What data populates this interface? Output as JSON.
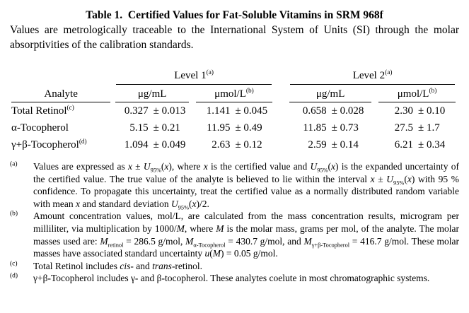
{
  "title": "Table 1.  Certified Values for Fat-Soluble Vitamins in SRM 968f",
  "intro": "Values are metrologically traceable to the International System of Units (SI) through the molar absorptivities of the calibration standards.",
  "table": {
    "analyte_header": "Analyte",
    "level_headers": [
      [
        {
          "t": "Level 1"
        },
        {
          "t": "(a)",
          "s": "sup"
        }
      ],
      [
        {
          "t": "Level 2"
        },
        {
          "t": "(a)",
          "s": "sup"
        }
      ]
    ],
    "unit_headers": [
      [
        {
          "t": "μg/mL"
        }
      ],
      [
        {
          "t": "μmol/L"
        },
        {
          "t": "(b)",
          "s": "sup"
        }
      ],
      [
        {
          "t": "μg/mL"
        }
      ],
      [
        {
          "t": "μmol/L"
        },
        {
          "t": "(b)",
          "s": "sup"
        }
      ]
    ],
    "rows": [
      {
        "analyte": [
          {
            "t": "Total Retinol"
          },
          {
            "t": "(c)",
            "s": "sup"
          }
        ],
        "values": [
          {
            "v": "0.327",
            "u": "± 0.013"
          },
          {
            "v": "1.141",
            "u": "± 0.045"
          },
          {
            "v": "0.658",
            "u": "± 0.028"
          },
          {
            "v": "2.30",
            "u": "± 0.10"
          }
        ]
      },
      {
        "analyte": [
          {
            "t": "α-Tocopherol"
          }
        ],
        "values": [
          {
            "v": "5.15",
            "u": "± 0.21"
          },
          {
            "v": "11.95",
            "u": "± 0.49"
          },
          {
            "v": "11.85",
            "u": "± 0.73"
          },
          {
            "v": "27.5",
            "u": "± 1.7"
          }
        ]
      },
      {
        "analyte": [
          {
            "t": "γ+β-Tocopherol"
          },
          {
            "t": "(d)",
            "s": "sup"
          }
        ],
        "values": [
          {
            "v": "1.094",
            "u": "± 0.049"
          },
          {
            "v": "2.63",
            "u": "± 0.12"
          },
          {
            "v": "2.59",
            "u": "± 0.14"
          },
          {
            "v": "6.21",
            "u": "± 0.34"
          }
        ]
      }
    ]
  },
  "footnotes": [
    {
      "label": "(a)",
      "segments": [
        {
          "t": "Values are expressed as "
        },
        {
          "t": "x",
          "s": "i"
        },
        {
          "t": " ± "
        },
        {
          "t": "U",
          "s": "i"
        },
        {
          "t": "95%",
          "s": "sub"
        },
        {
          "t": "("
        },
        {
          "t": "x",
          "s": "i"
        },
        {
          "t": "), where "
        },
        {
          "t": "x",
          "s": "i"
        },
        {
          "t": " is the certified value and "
        },
        {
          "t": "U",
          "s": "i"
        },
        {
          "t": "95%",
          "s": "sub"
        },
        {
          "t": "("
        },
        {
          "t": "x",
          "s": "i"
        },
        {
          "t": ") is the expanded uncertainty of the certified value.  The true value of the analyte is believed to lie within the interval "
        },
        {
          "t": "x",
          "s": "i"
        },
        {
          "t": " ± "
        },
        {
          "t": "U",
          "s": "i"
        },
        {
          "t": "95%",
          "s": "sub"
        },
        {
          "t": "("
        },
        {
          "t": "x",
          "s": "i"
        },
        {
          "t": ") with 95 % confidence.  To propagate this uncertainty, treat the certified value as a normally distributed random variable with mean "
        },
        {
          "t": "x",
          "s": "i"
        },
        {
          "t": " and standard deviation "
        },
        {
          "t": "U",
          "s": "i"
        },
        {
          "t": "95%",
          "s": "sub"
        },
        {
          "t": "("
        },
        {
          "t": "x",
          "s": "i"
        },
        {
          "t": ")/2."
        }
      ]
    },
    {
      "label": "(b)",
      "segments": [
        {
          "t": "Amount concentration values, mol/L, are calculated from the mass concentration results, microgram per milliliter, via multiplication by 1000/"
        },
        {
          "t": "M",
          "s": "i"
        },
        {
          "t": ", where "
        },
        {
          "t": "M",
          "s": "i"
        },
        {
          "t": " is the molar mass, grams per mol, of the analyte.  The molar masses used are:  "
        },
        {
          "t": "M",
          "s": "i"
        },
        {
          "t": "retinol",
          "s": "sub"
        },
        {
          "t": " = 286.5 g/mol,  "
        },
        {
          "t": "M",
          "s": "i"
        },
        {
          "t": "α-Tocopherol",
          "s": "sub"
        },
        {
          "t": " = 430.7 g/mol, and "
        },
        {
          "t": "M",
          "s": "i"
        },
        {
          "t": "γ+β-Tocopherol",
          "s": "sub"
        },
        {
          "t": " = 416.7 g/mol.  These molar masses have associated standard uncertainty "
        },
        {
          "t": "u",
          "s": "i"
        },
        {
          "t": "("
        },
        {
          "t": "M",
          "s": "i"
        },
        {
          "t": ") = 0.05 g/mol."
        }
      ]
    },
    {
      "label": "(c)",
      "segments": [
        {
          "t": "Total Retinol includes "
        },
        {
          "t": "cis",
          "s": "i"
        },
        {
          "t": "- and "
        },
        {
          "t": "trans",
          "s": "i"
        },
        {
          "t": "-retinol."
        }
      ]
    },
    {
      "label": "(d)",
      "segments": [
        {
          "t": "γ+β-Tocopherol includes γ- and β-tocopherol.  These analytes coelute in most chromatographic systems."
        }
      ]
    }
  ]
}
